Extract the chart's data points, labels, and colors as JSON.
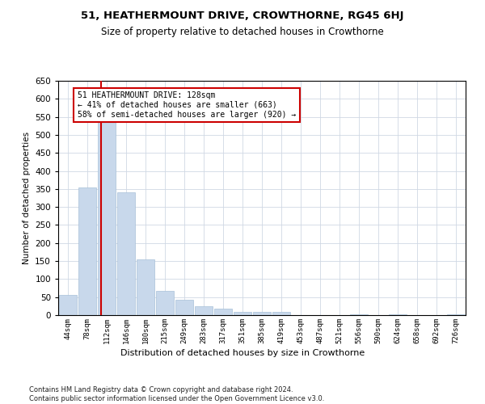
{
  "title": "51, HEATHERMOUNT DRIVE, CROWTHORNE, RG45 6HJ",
  "subtitle": "Size of property relative to detached houses in Crowthorne",
  "xlabel": "Distribution of detached houses by size in Crowthorne",
  "ylabel": "Number of detached properties",
  "bar_color": "#c8d8eb",
  "bar_edge_color": "#a8c0d8",
  "highlight_line_color": "#cc0000",
  "annotation_text": "51 HEATHERMOUNT DRIVE: 128sqm\n← 41% of detached houses are smaller (663)\n58% of semi-detached houses are larger (920) →",
  "annotation_box_color": "#ffffff",
  "annotation_box_edge_color": "#cc0000",
  "categories": [
    "44sqm",
    "78sqm",
    "112sqm",
    "146sqm",
    "180sqm",
    "215sqm",
    "249sqm",
    "283sqm",
    "317sqm",
    "351sqm",
    "385sqm",
    "419sqm",
    "453sqm",
    "487sqm",
    "521sqm",
    "556sqm",
    "590sqm",
    "624sqm",
    "658sqm",
    "692sqm",
    "726sqm"
  ],
  "values": [
    55,
    355,
    543,
    340,
    155,
    68,
    42,
    25,
    18,
    10,
    10,
    10,
    0,
    0,
    0,
    3,
    0,
    3,
    0,
    0,
    3
  ],
  "ylim": [
    0,
    650
  ],
  "yticks": [
    0,
    50,
    100,
    150,
    200,
    250,
    300,
    350,
    400,
    450,
    500,
    550,
    600,
    650
  ],
  "footer_text": "Contains HM Land Registry data © Crown copyright and database right 2024.\nContains public sector information licensed under the Open Government Licence v3.0.",
  "background_color": "#ffffff",
  "grid_color": "#d0d8e4"
}
